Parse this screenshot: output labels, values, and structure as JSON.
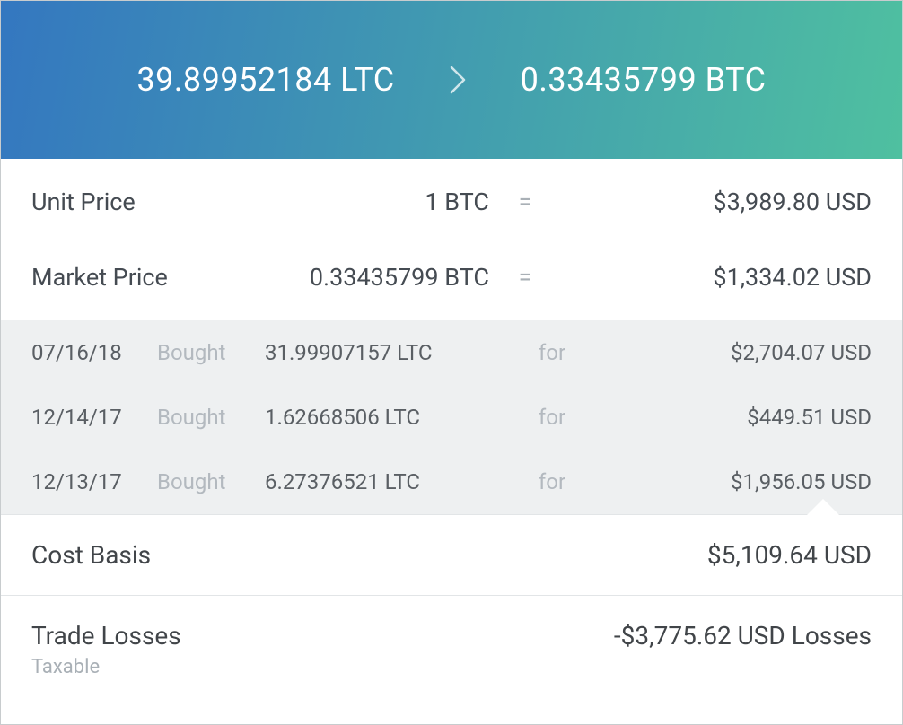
{
  "colors": {
    "header_gradient_from": "#3477c0",
    "header_gradient_to": "#4fc0a0",
    "header_text": "#ffffff",
    "body_text": "#414549",
    "muted_text": "#a9b0b6",
    "lots_bg": "#eef0f1",
    "card_border": "#c8ccce",
    "row_divider": "#e2e5e7"
  },
  "header": {
    "from_amount": "39.89952184 LTC",
    "to_amount": "0.33435799 BTC"
  },
  "prices": {
    "unit": {
      "label": "Unit Price",
      "amount": "1 BTC",
      "value": "$3,989.80 USD"
    },
    "market": {
      "label": "Market Price",
      "amount": "0.33435799 BTC",
      "value": "$1,334.02 USD"
    },
    "eq_symbol": "="
  },
  "lots": {
    "action_label": "Bought",
    "for_label": "for",
    "rows": [
      {
        "date": "07/16/18",
        "qty": "31.99907157 LTC",
        "cost": "$2,704.07 USD"
      },
      {
        "date": "12/14/17",
        "qty": "1.62668506 LTC",
        "cost": "$449.51 USD"
      },
      {
        "date": "12/13/17",
        "qty": "6.27376521 LTC",
        "cost": "$1,956.05 USD"
      }
    ]
  },
  "summary": {
    "cost_basis": {
      "label": "Cost Basis",
      "value": "$5,109.64 USD"
    },
    "trade_losses": {
      "label": "Trade Losses",
      "sub": "Taxable",
      "value": "-$3,775.62 USD Losses"
    }
  }
}
